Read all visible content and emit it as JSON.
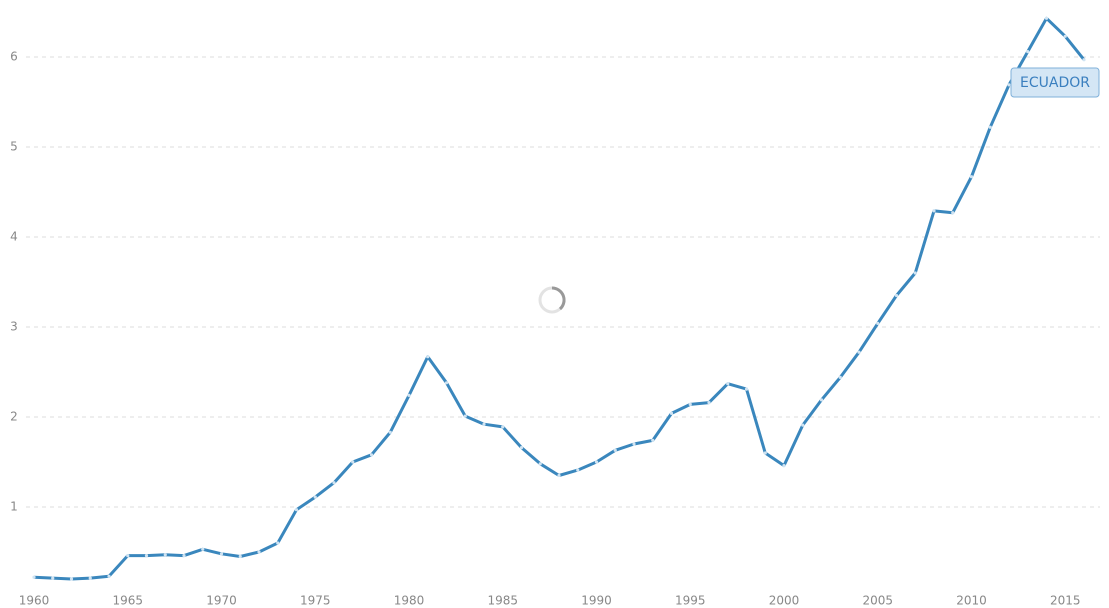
{
  "chart_data": {
    "type": "line",
    "x": [
      1960,
      1961,
      1962,
      1963,
      1964,
      1965,
      1966,
      1967,
      1968,
      1969,
      1970,
      1971,
      1972,
      1973,
      1974,
      1975,
      1976,
      1977,
      1978,
      1979,
      1980,
      1981,
      1982,
      1983,
      1984,
      1985,
      1986,
      1987,
      1988,
      1989,
      1990,
      1991,
      1992,
      1993,
      1994,
      1995,
      1996,
      1997,
      1998,
      1999,
      2000,
      2001,
      2002,
      2003,
      2004,
      2005,
      2006,
      2007,
      2008,
      2009,
      2010,
      2011,
      2012,
      2013,
      2014,
      2015,
      2016
    ],
    "series": [
      {
        "name": "ECUADOR",
        "color": "#3a87bd",
        "values": [
          0.22,
          0.21,
          0.2,
          0.21,
          0.23,
          0.46,
          0.46,
          0.47,
          0.46,
          0.53,
          0.48,
          0.45,
          0.5,
          0.6,
          0.97,
          1.11,
          1.27,
          1.5,
          1.58,
          1.83,
          2.24,
          2.67,
          2.38,
          2.01,
          1.92,
          1.89,
          1.66,
          1.48,
          1.35,
          1.41,
          1.5,
          1.63,
          1.7,
          1.74,
          2.04,
          2.14,
          2.16,
          2.37,
          2.31,
          1.6,
          1.46,
          1.91,
          2.19,
          2.44,
          2.72,
          3.04,
          3.35,
          3.6,
          4.29,
          4.27,
          4.67,
          5.22,
          5.69,
          6.06,
          6.43,
          6.23,
          5.97
        ]
      }
    ],
    "xlim": [
      1960,
      2016
    ],
    "xticks": [
      1960,
      1965,
      1970,
      1975,
      1980,
      1985,
      1990,
      1995,
      2000,
      2005,
      2010,
      2015
    ],
    "ylim": [
      0,
      6.5
    ],
    "yticks": [
      1,
      2,
      3,
      4,
      5,
      6
    ],
    "grid": true
  }
}
